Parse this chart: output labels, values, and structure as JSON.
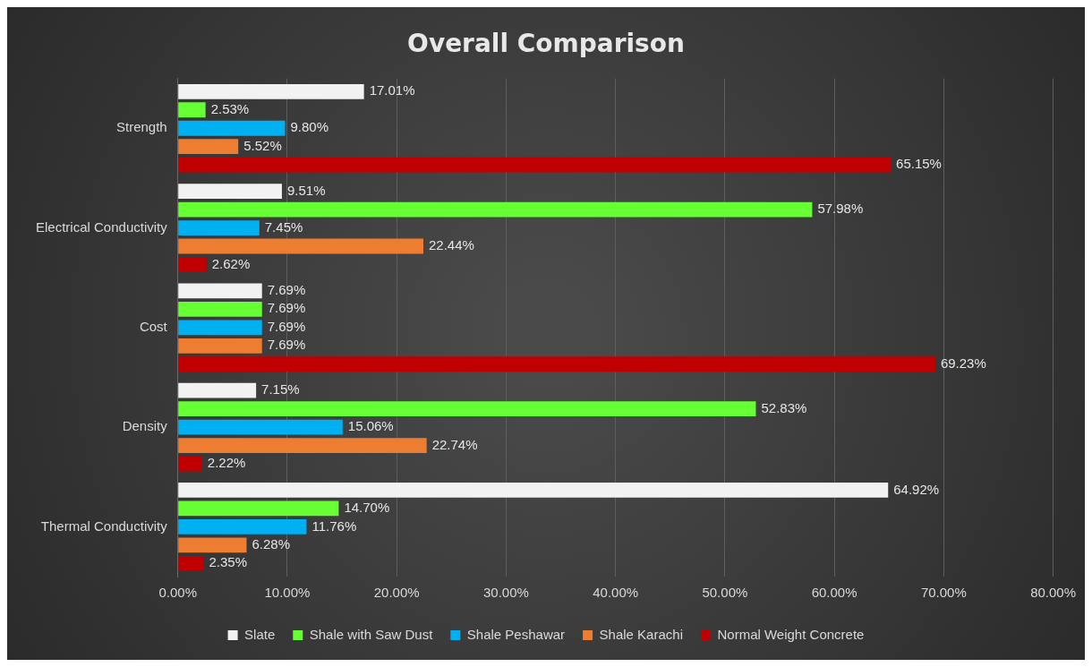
{
  "chart_data": {
    "type": "bar",
    "orientation": "horizontal",
    "title": "Overall Comparison",
    "categories": [
      "Strength",
      "Electrical Conductivity",
      "Cost",
      "Density",
      "Thermal Conductivity"
    ],
    "series": [
      {
        "name": "Slate",
        "color": "#f2f2f2",
        "values": [
          17.01,
          9.51,
          7.69,
          7.15,
          64.92
        ],
        "value_labels": [
          "17.01%",
          "9.51%",
          "7.69%",
          "7.15%",
          "64.92%"
        ]
      },
      {
        "name": "Shale with Saw Dust",
        "color": "#66ff33",
        "values": [
          2.53,
          57.98,
          7.69,
          52.83,
          14.7
        ],
        "value_labels": [
          "2.53%",
          "57.98%",
          "7.69%",
          "52.83%",
          "14.70%"
        ]
      },
      {
        "name": "Shale Peshawar",
        "color": "#00b0f0",
        "values": [
          9.8,
          7.45,
          7.69,
          15.06,
          11.76
        ],
        "value_labels": [
          "9.80%",
          "7.45%",
          "7.69%",
          "15.06%",
          "11.76%"
        ]
      },
      {
        "name": "Shale Karachi",
        "color": "#ed7d31",
        "values": [
          5.52,
          22.44,
          7.69,
          22.74,
          6.28
        ],
        "value_labels": [
          "5.52%",
          "22.44%",
          "7.69%",
          "22.74%",
          "6.28%"
        ]
      },
      {
        "name": "Normal Weight Concrete",
        "color": "#c00000",
        "values": [
          65.15,
          2.62,
          69.23,
          2.22,
          2.35
        ],
        "value_labels": [
          "65.15%",
          "2.62%",
          "69.23%",
          "2.22%",
          "2.35%"
        ]
      }
    ],
    "xlim": [
      0,
      80
    ],
    "xticks": [
      {
        "value": 0,
        "label": "0.00%"
      },
      {
        "value": 10,
        "label": "10.00%"
      },
      {
        "value": 20,
        "label": "20.00%"
      },
      {
        "value": 30,
        "label": "30.00%"
      },
      {
        "value": 40,
        "label": "40.00%"
      },
      {
        "value": 50,
        "label": "50.00%"
      },
      {
        "value": 60,
        "label": "60.00%"
      },
      {
        "value": 70,
        "label": "70.00%"
      },
      {
        "value": 80,
        "label": "80.00%"
      }
    ],
    "grid": "x",
    "legend": "bottom"
  }
}
